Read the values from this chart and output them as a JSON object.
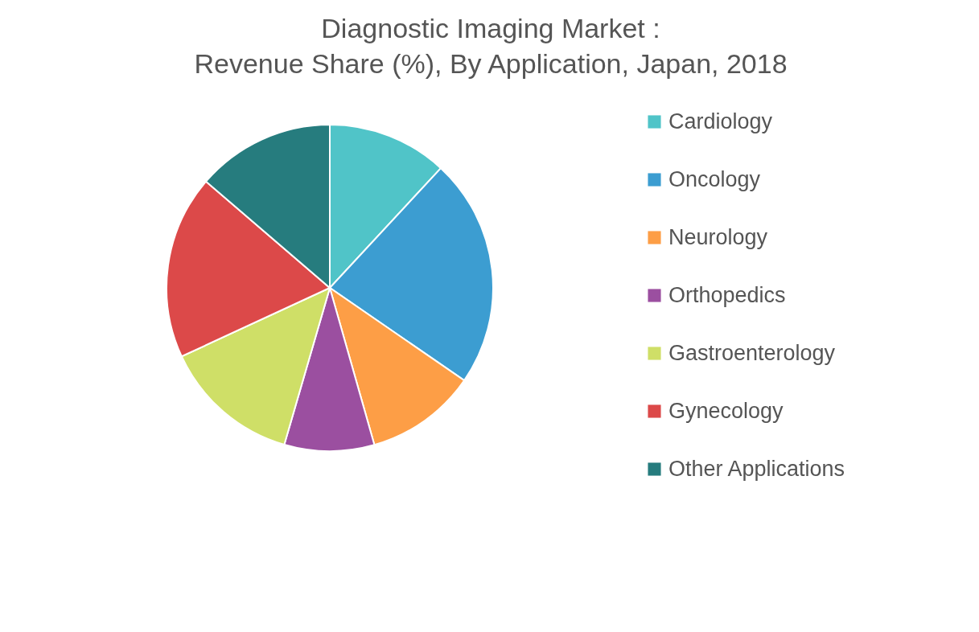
{
  "chart_data": {
    "type": "pie",
    "title": "Diagnostic Imaging Market :\nRevenue Share (%), By Application, Japan, 2018",
    "categories": [
      "Cardiology",
      "Oncology",
      "Neurology",
      "Orthopedics",
      "Gastroenterology",
      "Gynecology",
      "Other Applications"
    ],
    "values": [
      11.9,
      22.7,
      11.0,
      8.9,
      13.6,
      18.2,
      13.7
    ],
    "colors": [
      "#50c4c8",
      "#3c9dd1",
      "#fd9e46",
      "#9b4fa0",
      "#cfdf67",
      "#dc4949",
      "#267c7e"
    ],
    "legend": "right"
  }
}
